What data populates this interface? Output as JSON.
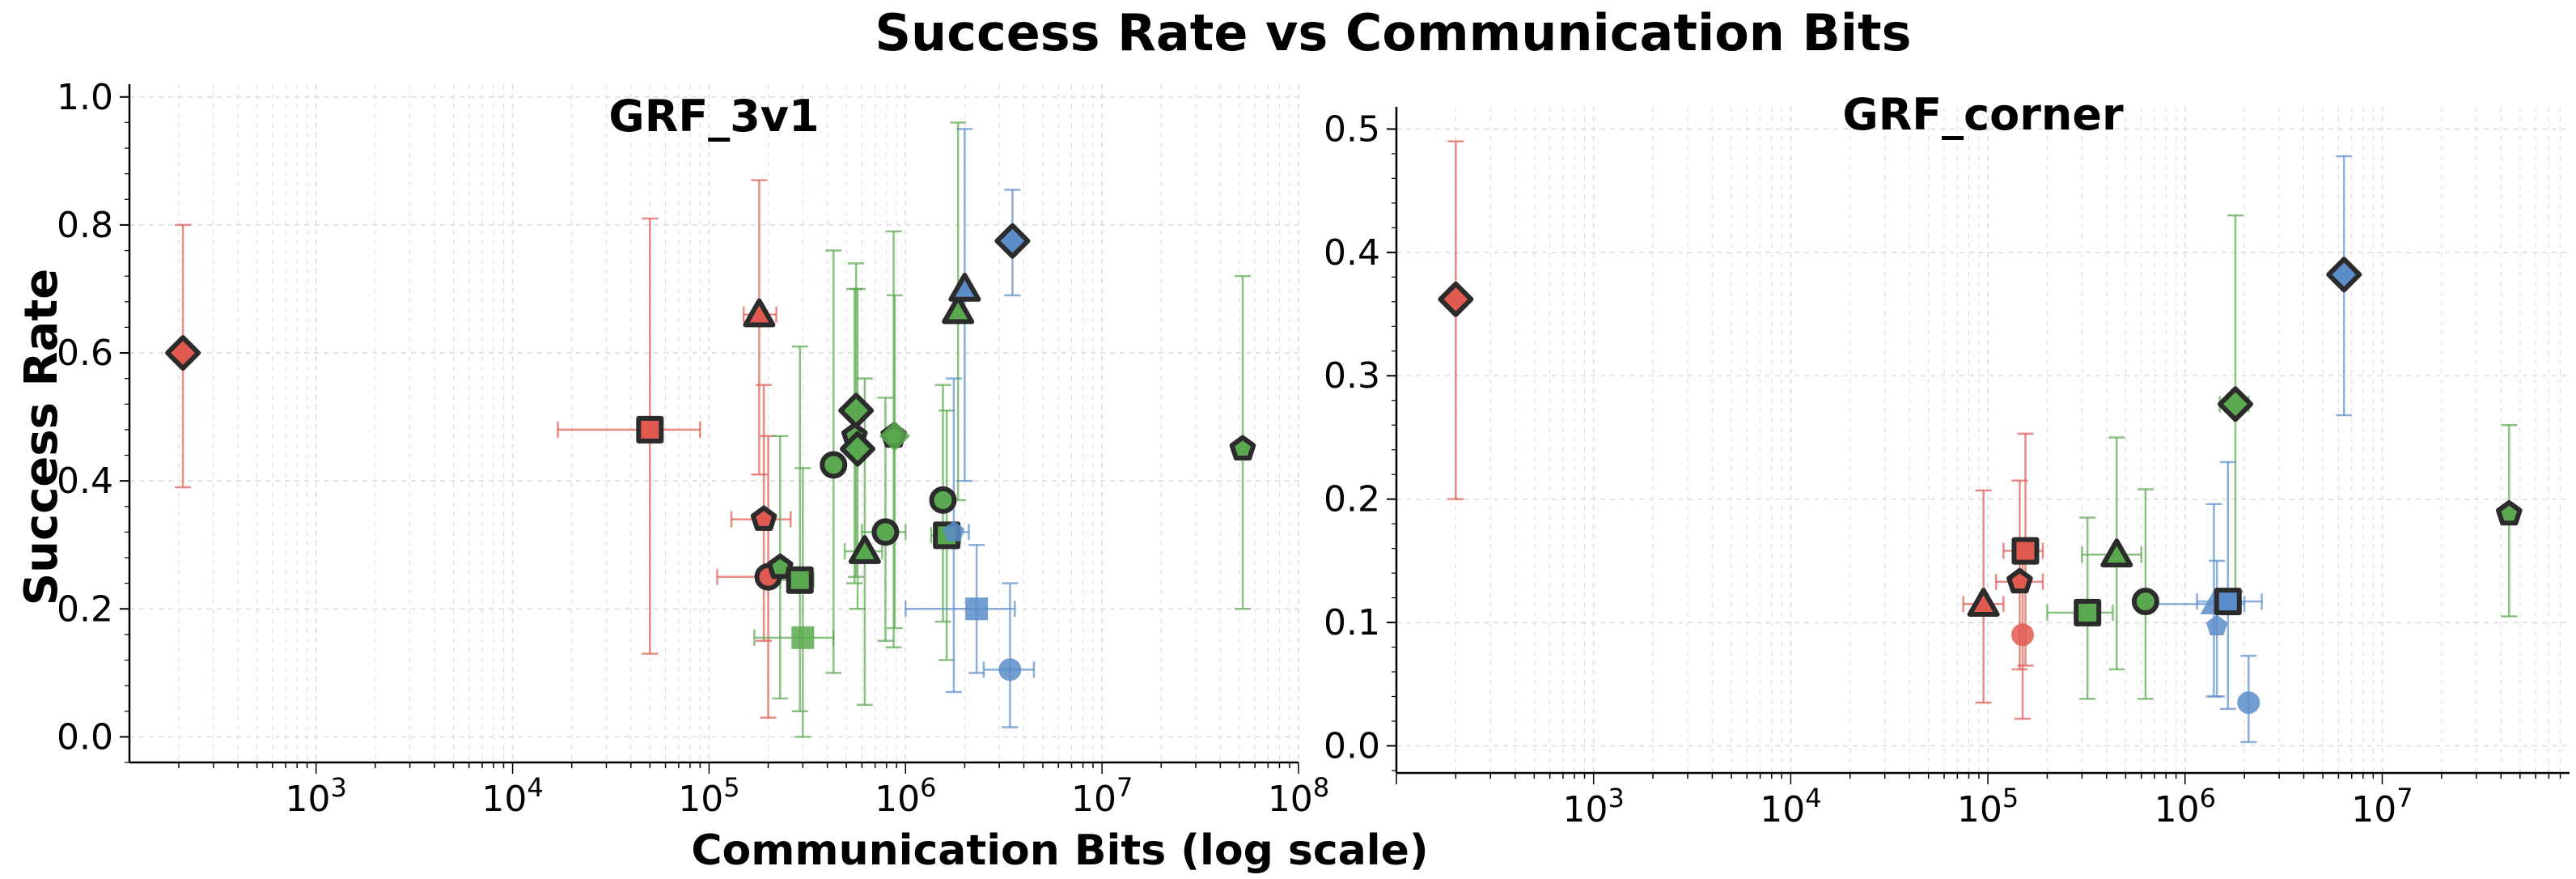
{
  "suptitle": "Success Rate vs Communication Bits",
  "xlabel": "Communication Bits (log scale)",
  "ylabel": "Success Rate",
  "colors": {
    "red": "#e05a50",
    "green": "#5aa84f",
    "blue": "#5b8dc9",
    "edge": "#2b2b2b",
    "grid": "#dddddd"
  },
  "chart_data": [
    {
      "type": "scatter",
      "title": "GRF_3v1",
      "xscale": "log",
      "xlim_exp": [
        2.05,
        8.0
      ],
      "ylim": [
        -0.04,
        1.02
      ],
      "xticks": [
        {
          "exp": 3,
          "label": "10",
          "sup": "3"
        },
        {
          "exp": 4,
          "label": "10",
          "sup": "4"
        },
        {
          "exp": 5,
          "label": "10",
          "sup": "5"
        },
        {
          "exp": 6,
          "label": "10",
          "sup": "6"
        },
        {
          "exp": 7,
          "label": "10",
          "sup": "7"
        },
        {
          "exp": 8,
          "label": "10",
          "sup": "8"
        }
      ],
      "yticks": [
        {
          "v": 0.0,
          "label": "0.0"
        },
        {
          "v": 0.2,
          "label": "0.2"
        },
        {
          "v": 0.4,
          "label": "0.4"
        },
        {
          "v": 0.6,
          "label": "0.6"
        },
        {
          "v": 0.8,
          "label": "0.8"
        },
        {
          "v": 1.0,
          "label": "1.0"
        }
      ],
      "points": [
        {
          "c": "red",
          "m": "diamond",
          "x": 210,
          "y": 0.6,
          "ylo": 0.39,
          "yhi": 0.8,
          "hl": true
        },
        {
          "c": "red",
          "m": "square",
          "x": 50000,
          "y": 0.48,
          "xlo": 17000,
          "xhi": 90000,
          "ylo": 0.13,
          "yhi": 0.81,
          "hl": true
        },
        {
          "c": "red",
          "m": "triangle",
          "x": 180000,
          "y": 0.66,
          "xlo": 150000,
          "xhi": 220000,
          "ylo": 0.41,
          "yhi": 0.87,
          "hl": true
        },
        {
          "c": "red",
          "m": "pentagon",
          "x": 190000,
          "y": 0.34,
          "xlo": 130000,
          "xhi": 260000,
          "ylo": 0.15,
          "yhi": 0.55,
          "hl": true
        },
        {
          "c": "red",
          "m": "circle",
          "x": 200000,
          "y": 0.25,
          "xlo": 110000,
          "xhi": 280000,
          "ylo": 0.03,
          "yhi": 0.47,
          "hl": true
        },
        {
          "c": "green",
          "m": "pentagon",
          "x": 230000,
          "y": 0.265,
          "ylo": 0.06,
          "yhi": 0.47,
          "hl": true
        },
        {
          "c": "green",
          "m": "square",
          "x": 290000,
          "y": 0.245,
          "xlo": 230000,
          "xhi": 340000,
          "ylo": 0.04,
          "yhi": 0.61,
          "hl": true
        },
        {
          "c": "green",
          "m": "square",
          "x": 300000,
          "y": 0.155,
          "xlo": 170000,
          "xhi": 430000,
          "ylo": 0.0,
          "yhi": 0.42,
          "hl": false
        },
        {
          "c": "green",
          "m": "circle",
          "x": 430000,
          "y": 0.425,
          "ylo": 0.1,
          "yhi": 0.76,
          "hl": true
        },
        {
          "c": "green",
          "m": "diamond",
          "x": 560000,
          "y": 0.51,
          "ylo": 0.25,
          "yhi": 0.74,
          "hl": true
        },
        {
          "c": "green",
          "m": "pentagon",
          "x": 550000,
          "y": 0.47,
          "ylo": 0.24,
          "yhi": 0.7,
          "hl": true
        },
        {
          "c": "green",
          "m": "diamond",
          "x": 570000,
          "y": 0.45,
          "ylo": 0.2,
          "yhi": 0.7,
          "hl": true
        },
        {
          "c": "green",
          "m": "triangle",
          "x": 620000,
          "y": 0.29,
          "xlo": 490000,
          "xhi": 760000,
          "ylo": 0.05,
          "yhi": 0.56,
          "hl": true
        },
        {
          "c": "green",
          "m": "circle",
          "x": 790000,
          "y": 0.32,
          "xlo": 600000,
          "xhi": 1000000,
          "ylo": 0.15,
          "yhi": 0.53,
          "hl": true
        },
        {
          "c": "green",
          "m": "pentagon",
          "x": 870000,
          "y": 0.47,
          "ylo": 0.14,
          "yhi": 0.79,
          "hl": true
        },
        {
          "c": "green",
          "m": "diamond",
          "x": 880000,
          "y": 0.47,
          "ylo": 0.17,
          "yhi": 0.69,
          "hl": false
        },
        {
          "c": "green",
          "m": "circle",
          "x": 1550000,
          "y": 0.37,
          "ylo": 0.18,
          "yhi": 0.55,
          "hl": true
        },
        {
          "c": "green",
          "m": "square",
          "x": 1620000,
          "y": 0.315,
          "xlo": 1350000,
          "xhi": 1900000,
          "ylo": 0.12,
          "yhi": 0.51,
          "hl": true
        },
        {
          "c": "green",
          "m": "triangle",
          "x": 1850000,
          "y": 0.665,
          "ylo": 0.37,
          "yhi": 0.96,
          "hl": true
        },
        {
          "c": "green",
          "m": "pentagon",
          "x": 52000000,
          "y": 0.45,
          "ylo": 0.2,
          "yhi": 0.72,
          "hl": true
        },
        {
          "c": "blue",
          "m": "pentagon",
          "x": 1760000,
          "y": 0.32,
          "xlo": 1400000,
          "xhi": 2100000,
          "ylo": 0.07,
          "yhi": 0.56,
          "hl": false
        },
        {
          "c": "blue",
          "m": "triangle",
          "x": 2000000,
          "y": 0.7,
          "ylo": 0.4,
          "yhi": 0.95,
          "hl": true
        },
        {
          "c": "blue",
          "m": "square",
          "x": 2300000,
          "y": 0.2,
          "xlo": 1000000,
          "xhi": 3600000,
          "ylo": 0.1,
          "yhi": 0.3,
          "hl": false
        },
        {
          "c": "blue",
          "m": "diamond",
          "x": 3500000,
          "y": 0.775,
          "ylo": 0.69,
          "yhi": 0.855,
          "hl": true
        },
        {
          "c": "blue",
          "m": "circle",
          "x": 3400000,
          "y": 0.105,
          "xlo": 2500000,
          "xhi": 4500000,
          "ylo": 0.015,
          "yhi": 0.24,
          "hl": false
        }
      ]
    },
    {
      "type": "scatter",
      "title": "GRF_corner",
      "xscale": "log",
      "xlim_exp": [
        2.0,
        7.95
      ],
      "ylim": [
        -0.022,
        0.518
      ],
      "xticks": [
        {
          "exp": 3,
          "label": "10",
          "sup": "3"
        },
        {
          "exp": 4,
          "label": "10",
          "sup": "4"
        },
        {
          "exp": 5,
          "label": "10",
          "sup": "5"
        },
        {
          "exp": 6,
          "label": "10",
          "sup": "6"
        },
        {
          "exp": 7,
          "label": "10",
          "sup": "7"
        }
      ],
      "yticks": [
        {
          "v": 0.0,
          "label": "0.0"
        },
        {
          "v": 0.1,
          "label": "0.1"
        },
        {
          "v": 0.2,
          "label": "0.2"
        },
        {
          "v": 0.3,
          "label": "0.3"
        },
        {
          "v": 0.4,
          "label": "0.4"
        },
        {
          "v": 0.5,
          "label": "0.5"
        }
      ],
      "points": [
        {
          "c": "red",
          "m": "diamond",
          "x": 200,
          "y": 0.362,
          "ylo": 0.2,
          "yhi": 0.49,
          "hl": true
        },
        {
          "c": "red",
          "m": "triangle",
          "x": 95000,
          "y": 0.115,
          "xlo": 75000,
          "xhi": 120000,
          "ylo": 0.035,
          "yhi": 0.207,
          "hl": true
        },
        {
          "c": "red",
          "m": "pentagon",
          "x": 145000,
          "y": 0.133,
          "xlo": 110000,
          "xhi": 190000,
          "ylo": 0.062,
          "yhi": 0.215,
          "hl": true
        },
        {
          "c": "red",
          "m": "square",
          "x": 155000,
          "y": 0.158,
          "xlo": 120000,
          "xhi": 190000,
          "ylo": 0.065,
          "yhi": 0.253,
          "hl": true
        },
        {
          "c": "red",
          "m": "circle",
          "x": 150000,
          "y": 0.09,
          "ylo": 0.022,
          "yhi": 0.165,
          "hl": false
        },
        {
          "c": "green",
          "m": "square",
          "x": 320000,
          "y": 0.108,
          "xlo": 200000,
          "xhi": 430000,
          "ylo": 0.038,
          "yhi": 0.185,
          "hl": true
        },
        {
          "c": "green",
          "m": "triangle",
          "x": 450000,
          "y": 0.155,
          "xlo": 300000,
          "xhi": 600000,
          "ylo": 0.062,
          "yhi": 0.25,
          "hl": true
        },
        {
          "c": "green",
          "m": "circle",
          "x": 630000,
          "y": 0.117,
          "ylo": 0.038,
          "yhi": 0.208,
          "hl": true
        },
        {
          "c": "green",
          "m": "diamond",
          "x": 1800000,
          "y": 0.277,
          "xlo": 1500000,
          "xhi": 2100000,
          "ylo": 0.125,
          "yhi": 0.43,
          "hl": true
        },
        {
          "c": "green",
          "m": "pentagon",
          "x": 44000000,
          "y": 0.188,
          "ylo": 0.105,
          "yhi": 0.26,
          "hl": true
        },
        {
          "c": "blue",
          "m": "triangle",
          "x": 1400000,
          "y": 0.115,
          "xlo": 700000,
          "xhi": 2000000,
          "ylo": 0.04,
          "yhi": 0.196,
          "hl": false
        },
        {
          "c": "blue",
          "m": "pentagon",
          "x": 1450000,
          "y": 0.097,
          "ylo": 0.04,
          "yhi": 0.15,
          "hl": false
        },
        {
          "c": "blue",
          "m": "square",
          "x": 1650000,
          "y": 0.117,
          "xlo": 1150000,
          "xhi": 2450000,
          "ylo": 0.03,
          "yhi": 0.23,
          "hl": true
        },
        {
          "c": "blue",
          "m": "circle",
          "x": 2100000,
          "y": 0.035,
          "ylo": 0.003,
          "yhi": 0.073,
          "hl": false
        },
        {
          "c": "blue",
          "m": "diamond",
          "x": 6400000,
          "y": 0.382,
          "ylo": 0.268,
          "yhi": 0.478,
          "hl": true
        }
      ]
    }
  ]
}
